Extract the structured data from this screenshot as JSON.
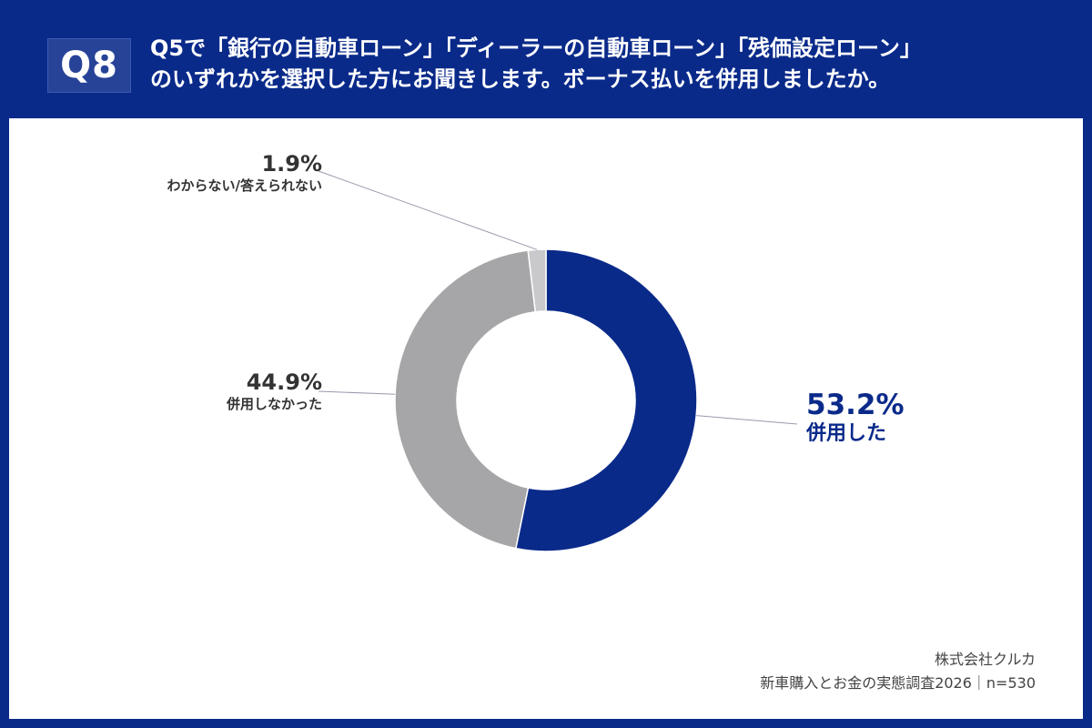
{
  "header": {
    "badge": "Q8",
    "question_line1": "Q5で「銀行の自動車ローン」「ディーラーの自動車ローン」「残価設定ローン」",
    "question_line2": "のいずれかを選択した方にお聞きします。ボーナス払いを併用しましたか。"
  },
  "chart_data": {
    "type": "pie",
    "donut": true,
    "categories": [
      "併用した",
      "併用しなかった",
      "わからない/答えられない"
    ],
    "values": [
      53.2,
      44.9,
      1.9
    ],
    "labels": [
      "53.2%",
      "44.9%",
      "1.9%"
    ],
    "colors": [
      "#0a2a8a",
      "#a6a6a8",
      "#c9c9cc"
    ]
  },
  "footer": {
    "company": "株式会社クルカ",
    "survey": "新車購入とお金の実態調査2026｜n=530"
  }
}
